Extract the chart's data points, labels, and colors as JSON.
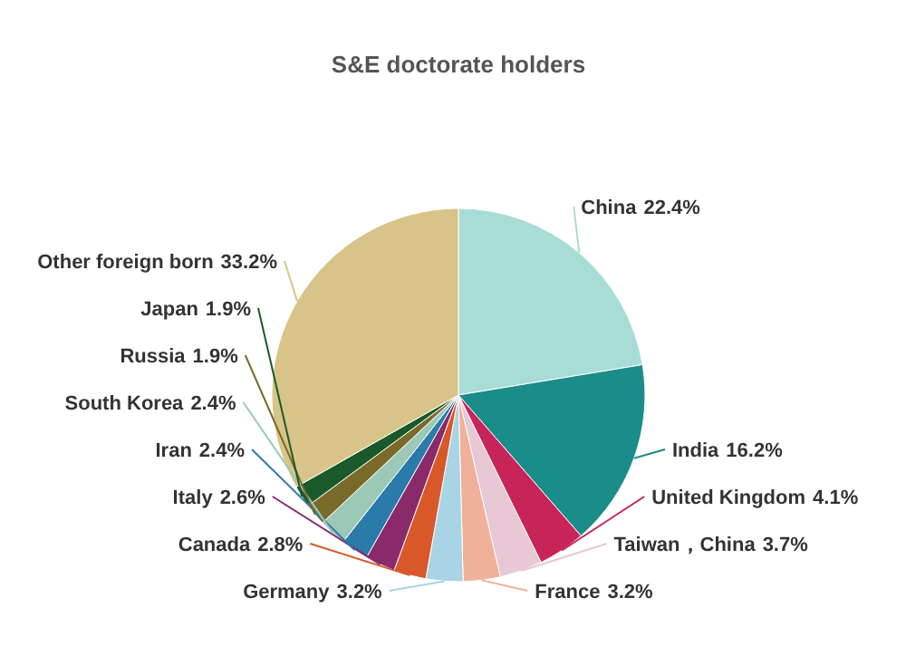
{
  "chart_data": {
    "type": "pie",
    "title": "S&E doctorate holders",
    "categories": [
      "China",
      "India",
      "United Kingdom",
      "Taiwan，China",
      "France",
      "Germany",
      "Canada",
      "Italy",
      "Iran",
      "South Korea",
      "Russia",
      "Japan",
      "Other foreign born"
    ],
    "values": [
      22.4,
      16.2,
      4.1,
      3.7,
      3.2,
      3.2,
      2.8,
      2.6,
      2.4,
      2.4,
      1.9,
      1.9,
      33.2
    ],
    "colors": [
      "#a8dcd6",
      "#1a8c8a",
      "#c8245a",
      "#e8c8d4",
      "#f0b09a",
      "#a8d4e6",
      "#d8582a",
      "#8a2a6a",
      "#2a7aaa",
      "#9cc8b8",
      "#7a6a2a",
      "#1a5a2a",
      "#d8c488"
    ],
    "value_labels": [
      "22.4%",
      "16.2%",
      "4.1%",
      "3.7%",
      "3.2%",
      "3.2%",
      "2.8%",
      "2.6%",
      "2.4%",
      "2.4%",
      "1.9%",
      "1.9%",
      "33.2%"
    ]
  }
}
